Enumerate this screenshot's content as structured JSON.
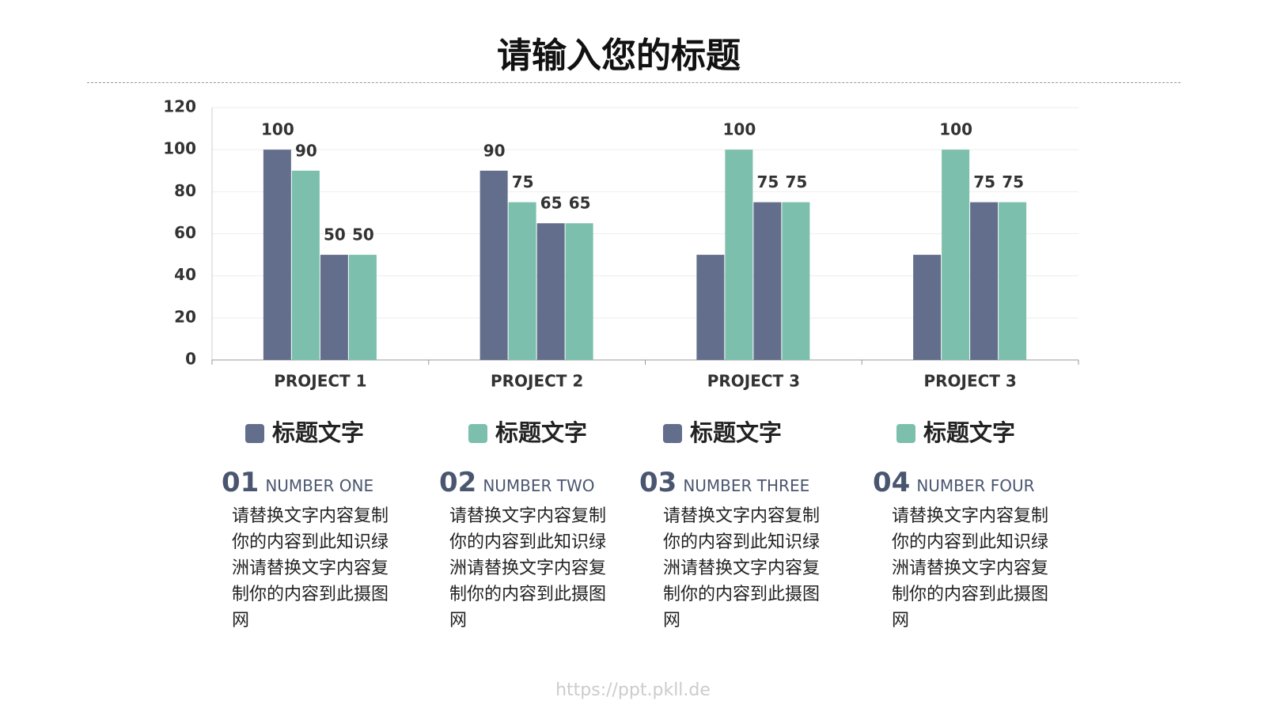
{
  "header": {
    "title": "请输入您的标题"
  },
  "chart_data": {
    "type": "bar",
    "categories": [
      "PROJECT 1",
      "PROJECT 2",
      "PROJECT 3",
      "PROJECT 3"
    ],
    "series": [
      {
        "name": "标题文字",
        "color": "#636e8c",
        "values": [
          100,
          90,
          50,
          50
        ],
        "value_labels": [
          "100",
          "90",
          null,
          null
        ]
      },
      {
        "name": "标题文字",
        "color": "#7bbfac",
        "values": [
          90,
          75,
          100,
          100
        ]
      },
      {
        "name": "标题文字",
        "color": "#636e8c",
        "values": [
          50,
          65,
          75,
          75
        ]
      },
      {
        "name": "标题文字",
        "color": "#7bbfac",
        "values": [
          50,
          65,
          75,
          75
        ]
      }
    ],
    "ylim": [
      0,
      120
    ],
    "yticks": [
      0,
      20,
      40,
      60,
      80,
      100,
      120
    ],
    "grid": true,
    "legend": "bottom"
  },
  "columns": [
    {
      "number": "01",
      "subtitle": "NUMBER ONE",
      "body": "请替换文字内容复制你的内容到此知识绿洲请替换文字内容复制你的内容到此摄图网"
    },
    {
      "number": "02",
      "subtitle": "NUMBER TWO",
      "body": "请替换文字内容复制你的内容到此知识绿洲请替换文字内容复制你的内容到此摄图网"
    },
    {
      "number": "03",
      "subtitle": "NUMBER THREE",
      "body": "请替换文字内容复制你的内容到此知识绿洲请替换文字内容复制你的内容到此摄图网"
    },
    {
      "number": "04",
      "subtitle": "NUMBER FOUR",
      "body": "请替换文字内容复制你的内容到此知识绿洲请替换文字内容复制你的内容到此摄图网"
    }
  ],
  "footer": {
    "url": "https://ppt.pkll.de"
  }
}
